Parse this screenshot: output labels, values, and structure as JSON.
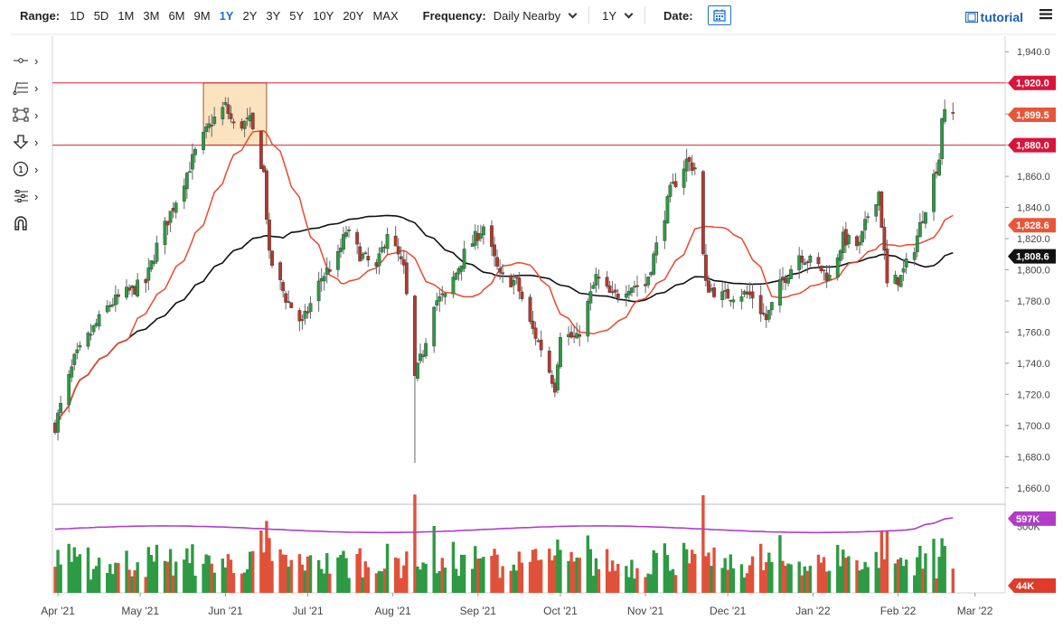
{
  "toolbar": {
    "range_label": "Range:",
    "ranges": [
      "1D",
      "5D",
      "1M",
      "3M",
      "6M",
      "9M",
      "1Y",
      "2Y",
      "3Y",
      "5Y",
      "10Y",
      "20Y",
      "MAX"
    ],
    "active_range": "1Y",
    "frequency_label": "Frequency:",
    "frequency_value": "Daily Nearby",
    "period_value": "1Y",
    "date_label": "Date:",
    "tutorial_label": "tutorial"
  },
  "colors": {
    "up": "#2e9a44",
    "down": "#b5382e",
    "ma_fast": "#e84a2e",
    "ma_slow": "#111111",
    "hline": "#d9233a",
    "highlight_fill": "#fbe3bf",
    "highlight_stroke": "#9a5a2a",
    "volume_line": "#b23cc9",
    "accent": "#1a73c8"
  },
  "chart_data": {
    "type": "candlestick",
    "title": "",
    "x_tick_labels": [
      "Apr '21",
      "May '21",
      "Jun '21",
      "Jul '21",
      "Aug '21",
      "Sep '21",
      "Oct '21",
      "Nov '21",
      "Dec '21",
      "Jan '22",
      "Feb '22",
      "Mar '22"
    ],
    "price_axis": {
      "ylim": [
        1650,
        1950
      ],
      "ticks": [
        1660,
        1680,
        1700,
        1720,
        1740,
        1760,
        1780,
        1800,
        1820,
        1840,
        1860,
        1880,
        1900,
        1920,
        1940
      ],
      "tick_labels": [
        "1,660.0",
        "1,680.0",
        "1,700.0",
        "1,720.0",
        "1,740.0",
        "1,760.0",
        "1,780.0",
        "1,800.0",
        "1,820.0",
        "1,840.0",
        "1,860.0",
        "1,880.0",
        "1,900.0",
        "1,920.0",
        "1,940.0"
      ]
    },
    "horizontal_lines": [
      {
        "value": 1920.0,
        "label": "1,920.0"
      },
      {
        "value": 1880.0,
        "label": "1,880.0"
      }
    ],
    "price_badges": [
      {
        "value": 1899.5,
        "label": "1,899.5",
        "kind": "last"
      },
      {
        "value": 1828.6,
        "label": "1,828.6",
        "kind": "ma_fast"
      },
      {
        "value": 1808.6,
        "label": "1,808.6",
        "kind": "ma_slow"
      }
    ],
    "highlight_zone": {
      "price_low": 1880,
      "price_high": 1920,
      "start_date": "2021-05-24",
      "end_date": "2021-06-16"
    },
    "moving_averages": [
      {
        "kind": "fast",
        "color": "#e84a2e",
        "value_last": 1828.6
      },
      {
        "kind": "slow",
        "color": "#111111",
        "value_last": 1808.6
      }
    ],
    "volume": {
      "label_top": "500K",
      "badge_top": "597K",
      "badge_bottom": "44K"
    },
    "anchors": [
      {
        "date": "2021-03-31",
        "close": 1700
      },
      {
        "date": "2021-04-07",
        "close": 1742
      },
      {
        "date": "2021-04-15",
        "close": 1765
      },
      {
        "date": "2021-04-20",
        "close": 1778
      },
      {
        "date": "2021-04-26",
        "close": 1785
      },
      {
        "date": "2021-05-03",
        "close": 1792
      },
      {
        "date": "2021-05-07",
        "close": 1815
      },
      {
        "date": "2021-05-14",
        "close": 1845
      },
      {
        "date": "2021-05-21",
        "close": 1875
      },
      {
        "date": "2021-05-27",
        "close": 1895
      },
      {
        "date": "2021-06-01",
        "close": 1905
      },
      {
        "date": "2021-06-04",
        "close": 1892
      },
      {
        "date": "2021-06-10",
        "close": 1895
      },
      {
        "date": "2021-06-15",
        "close": 1862
      },
      {
        "date": "2021-06-17",
        "close": 1808
      },
      {
        "date": "2021-06-23",
        "close": 1782
      },
      {
        "date": "2021-06-29",
        "close": 1765
      },
      {
        "date": "2021-07-06",
        "close": 1795
      },
      {
        "date": "2021-07-12",
        "close": 1808
      },
      {
        "date": "2021-07-15",
        "close": 1825
      },
      {
        "date": "2021-07-20",
        "close": 1810
      },
      {
        "date": "2021-07-26",
        "close": 1800
      },
      {
        "date": "2021-07-30",
        "close": 1825
      },
      {
        "date": "2021-08-05",
        "close": 1800
      },
      {
        "date": "2021-08-09",
        "close": 1730
      },
      {
        "date": "2021-08-12",
        "close": 1748
      },
      {
        "date": "2021-08-16",
        "close": 1780
      },
      {
        "date": "2021-08-20",
        "close": 1782
      },
      {
        "date": "2021-08-27",
        "close": 1810
      },
      {
        "date": "2021-09-03",
        "close": 1828
      },
      {
        "date": "2021-09-09",
        "close": 1795
      },
      {
        "date": "2021-09-15",
        "close": 1792
      },
      {
        "date": "2021-09-20",
        "close": 1765
      },
      {
        "date": "2021-09-24",
        "close": 1750
      },
      {
        "date": "2021-09-29",
        "close": 1725
      },
      {
        "date": "2021-10-01",
        "close": 1760
      },
      {
        "date": "2021-10-07",
        "close": 1755
      },
      {
        "date": "2021-10-14",
        "close": 1795
      },
      {
        "date": "2021-10-20",
        "close": 1782
      },
      {
        "date": "2021-10-26",
        "close": 1790
      },
      {
        "date": "2021-11-01",
        "close": 1790
      },
      {
        "date": "2021-11-05",
        "close": 1815
      },
      {
        "date": "2021-11-10",
        "close": 1850
      },
      {
        "date": "2021-11-16",
        "close": 1870
      },
      {
        "date": "2021-11-19",
        "close": 1865
      },
      {
        "date": "2021-11-23",
        "close": 1790
      },
      {
        "date": "2021-11-29",
        "close": 1783
      },
      {
        "date": "2021-12-06",
        "close": 1785
      },
      {
        "date": "2021-12-10",
        "close": 1783
      },
      {
        "date": "2021-12-15",
        "close": 1768
      },
      {
        "date": "2021-12-20",
        "close": 1790
      },
      {
        "date": "2021-12-27",
        "close": 1810
      },
      {
        "date": "2022-01-03",
        "close": 1802
      },
      {
        "date": "2022-01-07",
        "close": 1795
      },
      {
        "date": "2022-01-12",
        "close": 1820
      },
      {
        "date": "2022-01-18",
        "close": 1815
      },
      {
        "date": "2022-01-21",
        "close": 1835
      },
      {
        "date": "2022-01-25",
        "close": 1850
      },
      {
        "date": "2022-01-28",
        "close": 1790
      },
      {
        "date": "2022-02-02",
        "close": 1795
      },
      {
        "date": "2022-02-07",
        "close": 1815
      },
      {
        "date": "2022-02-10",
        "close": 1835
      },
      {
        "date": "2022-02-14",
        "close": 1860
      },
      {
        "date": "2022-02-16",
        "close": 1872
      },
      {
        "date": "2022-02-17",
        "close": 1899
      },
      {
        "date": "2022-02-21",
        "close": 1899.5
      }
    ]
  }
}
